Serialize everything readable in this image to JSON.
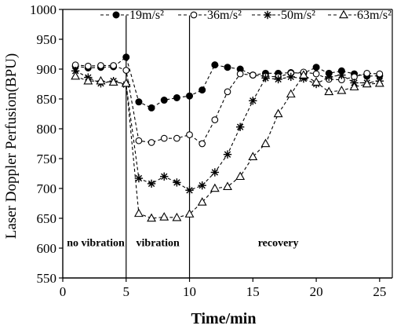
{
  "chart_data": {
    "type": "line",
    "title": "",
    "xlabel": "Time/min",
    "ylabel": "Laser Doppler Perfusion(BPU)",
    "xlim": [
      0,
      26
    ],
    "ylim": [
      550,
      1000
    ],
    "xticks": [
      0,
      5,
      10,
      15,
      20,
      25
    ],
    "yticks": [
      550,
      600,
      650,
      700,
      750,
      800,
      850,
      900,
      950,
      1000
    ],
    "grid": false,
    "legend_position": "top",
    "x": [
      1,
      2,
      3,
      4,
      5,
      6,
      7,
      8,
      9,
      10,
      11,
      12,
      13,
      14,
      15,
      16,
      17,
      18,
      19,
      20,
      21,
      22,
      23,
      24,
      25
    ],
    "series": [
      {
        "name": "19m/s²",
        "marker": "filled-circle",
        "values": [
          905,
          902,
          903,
          904,
          920,
          845,
          835,
          848,
          852,
          855,
          865,
          907,
          903,
          900,
          890,
          893,
          893,
          894,
          893,
          903,
          893,
          897,
          892,
          888,
          889
        ]
      },
      {
        "name": "36m/s²",
        "marker": "open-circle",
        "values": [
          907,
          905,
          906,
          906,
          898,
          780,
          777,
          784,
          784,
          790,
          775,
          815,
          862,
          892,
          890,
          888,
          887,
          893,
          895,
          892,
          883,
          882,
          887,
          893,
          892
        ]
      },
      {
        "name": "50m/s²",
        "marker": "asterisk",
        "values": [
          897,
          886,
          876,
          880,
          874,
          717,
          708,
          720,
          710,
          697,
          705,
          727,
          757,
          803,
          847,
          885,
          883,
          887,
          884,
          875,
          887,
          890,
          877,
          877,
          880
        ]
      },
      {
        "name": "63m/s²",
        "marker": "open-triangle",
        "values": [
          888,
          880,
          880,
          878,
          876,
          658,
          650,
          652,
          651,
          657,
          677,
          700,
          703,
          720,
          753,
          775,
          825,
          858,
          890,
          878,
          862,
          864,
          870,
          875,
          876
        ]
      }
    ],
    "annotations": [
      {
        "text": "no vibration",
        "x": 2.6,
        "y": 610
      },
      {
        "text": "vibration",
        "x": 7.5,
        "y": 610
      },
      {
        "text": "recovery",
        "x": 17.0,
        "y": 610
      }
    ],
    "vertical_lines": [
      5,
      10
    ]
  }
}
